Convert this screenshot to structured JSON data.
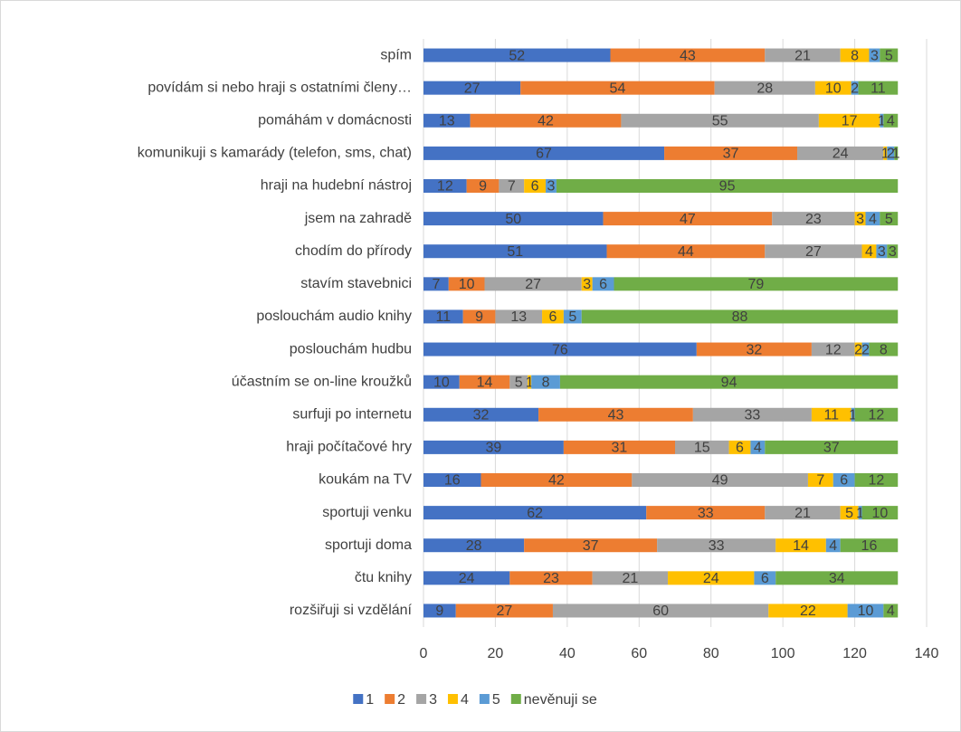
{
  "chart_data": {
    "type": "stacked_bar_horizontal",
    "categories": [
      "spím",
      "povídám si nebo hraji s ostatními členy…",
      "pomáhám v domácnosti",
      "komunikuji s kamarády (telefon, sms, chat)",
      "hraji na hudební nástroj",
      "jsem na zahradě",
      "chodím do přírody",
      "stavím stavebnici",
      "poslouchám audio knihy",
      "poslouchám hudbu",
      "účastním se on-line kroužků",
      "surfuji po internetu",
      "hraji počítačové hry",
      "koukám na TV",
      "sportuji venku",
      "sportuji doma",
      "čtu knihy",
      "rozšiřuji si vzdělání"
    ],
    "series": [
      {
        "name": "1",
        "color": "#4472c4",
        "values": [
          52,
          27,
          13,
          67,
          12,
          50,
          51,
          7,
          11,
          76,
          10,
          32,
          39,
          16,
          62,
          28,
          24,
          9
        ]
      },
      {
        "name": "2",
        "color": "#ed7d31",
        "values": [
          43,
          54,
          42,
          37,
          9,
          47,
          44,
          10,
          9,
          32,
          14,
          43,
          31,
          42,
          33,
          37,
          23,
          27
        ]
      },
      {
        "name": "3",
        "color": "#a5a5a5",
        "values": [
          21,
          28,
          55,
          24,
          7,
          23,
          27,
          27,
          13,
          12,
          5,
          33,
          15,
          49,
          21,
          33,
          21,
          60
        ]
      },
      {
        "name": "4",
        "color": "#ffc000",
        "values": [
          8,
          10,
          17,
          1,
          6,
          3,
          4,
          3,
          6,
          2,
          1,
          11,
          6,
          7,
          5,
          14,
          24,
          22
        ]
      },
      {
        "name": "5",
        "color": "#5b9bd5",
        "values": [
          3,
          2,
          1,
          2,
          3,
          4,
          3,
          6,
          5,
          2,
          8,
          1,
          4,
          6,
          1,
          4,
          6,
          10
        ]
      },
      {
        "name": "nevěnuji se",
        "color": "#70ad47",
        "values": [
          5,
          11,
          4,
          1,
          95,
          5,
          3,
          79,
          88,
          8,
          94,
          12,
          37,
          12,
          10,
          16,
          34,
          4
        ]
      }
    ],
    "xlim": [
      0,
      140
    ],
    "xticks": [
      0,
      20,
      40,
      60,
      80,
      100,
      120,
      140
    ],
    "grid": true,
    "legend": "bottom"
  }
}
